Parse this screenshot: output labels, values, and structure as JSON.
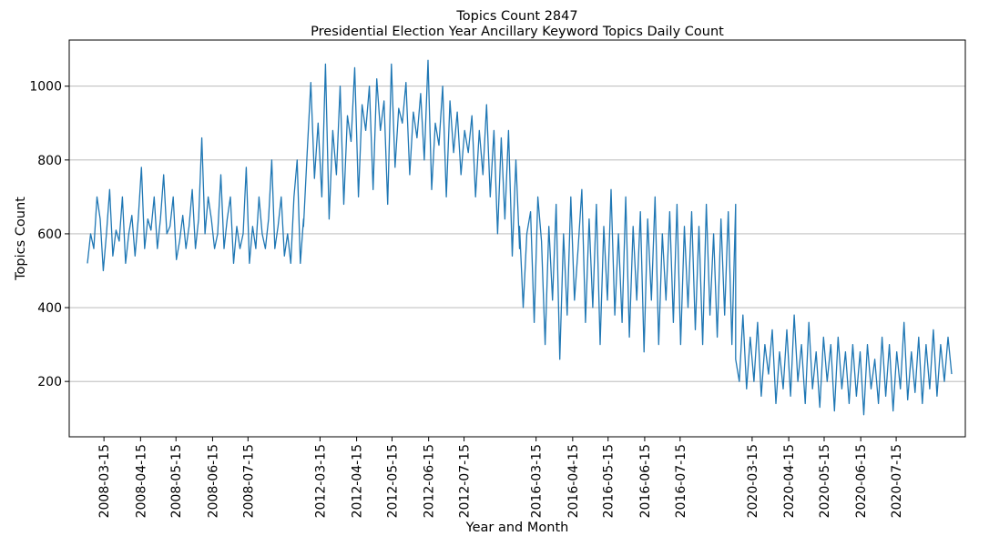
{
  "chart_data": {
    "type": "line",
    "title": "Topics Count 2847",
    "subtitle": "Presidential Election Year Ancillary Keyword Topics Daily Count",
    "xlabel": "Year and Month",
    "ylabel": "Topics Count",
    "ylim": [
      50,
      1125
    ],
    "yticks": [
      200,
      400,
      600,
      800,
      1000
    ],
    "grid": "horizontal",
    "line_color": "#1f77b4",
    "xtick_labels": [
      "2008-03-15",
      "2008-04-15",
      "2008-05-15",
      "2008-06-15",
      "2008-07-15",
      "2012-03-15",
      "2012-04-15",
      "2012-05-15",
      "2012-06-15",
      "2012-07-15",
      "2016-03-15",
      "2016-04-15",
      "2016-05-15",
      "2016-06-15",
      "2016-07-15",
      "2020-03-15",
      "2020-04-15",
      "2020-05-15",
      "2020-06-15",
      "2020-07-15"
    ],
    "series": [
      {
        "segments": [
          {
            "period": "2008",
            "start": "2008-03-01",
            "end": "2008-08-31",
            "samples": [
              520,
              600,
              560,
              700,
              640,
              500,
              600,
              720,
              540,
              610,
              580,
              700,
              520,
              600,
              650,
              540,
              640,
              780,
              560,
              640,
              610,
              700,
              560,
              640,
              760,
              600,
              620,
              700,
              530,
              580,
              650,
              560,
              620,
              720,
              560,
              640,
              860,
              600,
              700,
              640,
              560,
              600,
              760,
              560,
              640,
              700,
              520,
              620,
              560,
              600,
              780,
              520,
              620,
              560,
              700,
              600,
              560,
              640,
              800,
              560,
              620,
              700,
              540,
              600,
              520,
              700,
              800,
              520,
              640
            ]
          },
          {
            "period": "2012",
            "start": "2012-03-01",
            "end": "2012-08-31",
            "samples": [
              620,
              820,
              1010,
              750,
              900,
              700,
              1060,
              640,
              880,
              760,
              1000,
              680,
              920,
              850,
              1050,
              700,
              950,
              880,
              1000,
              720,
              1020,
              880,
              960,
              680,
              1060,
              780,
              940,
              900,
              1010,
              760,
              930,
              860,
              980,
              800,
              1070,
              720,
              900,
              840,
              1000,
              700,
              960,
              820,
              930,
              760,
              880,
              820,
              920,
              700,
              880,
              760,
              950,
              700,
              880,
              600,
              860,
              640,
              880,
              540,
              800,
              560
            ]
          },
          {
            "period": "2016",
            "start": "2016-03-01",
            "end": "2016-08-31",
            "samples": [
              620,
              400,
              600,
              660,
              360,
              700,
              580,
              300,
              620,
              420,
              680,
              260,
              600,
              380,
              700,
              420,
              560,
              720,
              360,
              640,
              400,
              680,
              300,
              620,
              420,
              720,
              380,
              600,
              360,
              700,
              320,
              620,
              420,
              660,
              280,
              640,
              420,
              700,
              300,
              600,
              420,
              660,
              360,
              680,
              300,
              620,
              400,
              660,
              340,
              620,
              300,
              680,
              380,
              600,
              320,
              640,
              380,
              660,
              300,
              680
            ]
          },
          {
            "period": "2020",
            "start": "2020-03-01",
            "end": "2020-08-31",
            "samples": [
              260,
              200,
              380,
              180,
              320,
              200,
              360,
              160,
              300,
              220,
              340,
              140,
              280,
              180,
              340,
              160,
              380,
              200,
              300,
              140,
              360,
              180,
              280,
              130,
              320,
              200,
              300,
              120,
              320,
              180,
              280,
              140,
              300,
              160,
              280,
              110,
              300,
              180,
              260,
              140,
              320,
              160,
              300,
              120,
              280,
              180,
              360,
              150,
              280,
              170,
              320,
              140,
              300,
              180,
              340,
              160,
              300,
              200,
              320,
              220
            ]
          }
        ]
      }
    ]
  }
}
